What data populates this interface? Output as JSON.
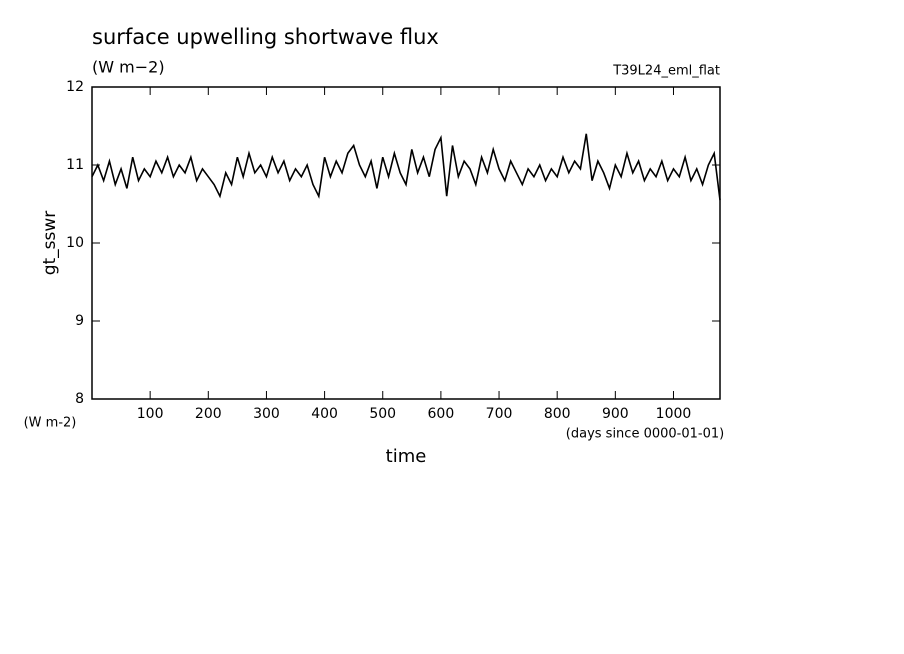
{
  "chart_data": {
    "type": "line",
    "title": "surface upwelling shortwave flux",
    "subtitle": "(W m−2)",
    "annotation": "T39L24_eml_flat",
    "ylabel": "gt_sswr",
    "y_unit": "(W m-2)",
    "xlabel": "time",
    "x_unit": "(days since 0000-01-01)",
    "color": "#000000",
    "x": [
      0,
      10,
      20,
      30,
      40,
      50,
      60,
      70,
      80,
      90,
      100,
      110,
      120,
      130,
      140,
      150,
      160,
      170,
      180,
      190,
      200,
      210,
      220,
      230,
      240,
      250,
      260,
      270,
      280,
      290,
      300,
      310,
      320,
      330,
      340,
      350,
      360,
      370,
      380,
      390,
      400,
      410,
      420,
      430,
      440,
      450,
      460,
      470,
      480,
      490,
      500,
      510,
      520,
      530,
      540,
      550,
      560,
      570,
      580,
      590,
      600,
      610,
      620,
      630,
      640,
      650,
      660,
      670,
      680,
      690,
      700,
      710,
      720,
      730,
      740,
      750,
      760,
      770,
      780,
      790,
      800,
      810,
      820,
      830,
      840,
      850,
      860,
      870,
      880,
      890,
      900,
      910,
      920,
      930,
      940,
      950,
      960,
      970,
      980,
      990,
      1000,
      1010,
      1020,
      1030,
      1040,
      1050,
      1060,
      1070,
      1080
    ],
    "values": [
      10.85,
      11.0,
      10.8,
      11.05,
      10.75,
      10.95,
      10.7,
      11.1,
      10.8,
      10.95,
      10.85,
      11.05,
      10.9,
      11.1,
      10.85,
      11.0,
      10.9,
      11.1,
      10.8,
      10.95,
      10.85,
      10.75,
      10.6,
      10.9,
      10.75,
      11.1,
      10.85,
      11.15,
      10.9,
      11.0,
      10.85,
      11.1,
      10.9,
      11.05,
      10.8,
      10.95,
      10.85,
      11.0,
      10.75,
      10.6,
      11.1,
      10.85,
      11.05,
      10.9,
      11.15,
      11.25,
      11.0,
      10.85,
      11.05,
      10.7,
      11.1,
      10.85,
      11.15,
      10.9,
      10.75,
      11.2,
      10.9,
      11.1,
      10.85,
      11.2,
      11.35,
      10.6,
      11.25,
      10.85,
      11.05,
      10.95,
      10.75,
      11.1,
      10.9,
      11.2,
      10.95,
      10.8,
      11.05,
      10.9,
      10.75,
      10.95,
      10.85,
      11.0,
      10.8,
      10.95,
      10.85,
      11.1,
      10.9,
      11.05,
      10.95,
      11.4,
      10.8,
      11.05,
      10.9,
      10.7,
      11.0,
      10.85,
      11.15,
      10.9,
      11.05,
      10.8,
      10.95,
      10.85,
      11.05,
      10.8,
      10.95,
      10.85,
      11.1,
      10.8,
      10.95,
      10.75,
      11.0,
      11.15,
      10.55
    ],
    "xlim": [
      0,
      1080
    ],
    "ylim": [
      8,
      12
    ],
    "xticks": [
      100,
      200,
      300,
      400,
      500,
      600,
      700,
      800,
      900,
      1000
    ],
    "yticks": [
      8,
      9,
      10,
      11,
      12
    ]
  }
}
